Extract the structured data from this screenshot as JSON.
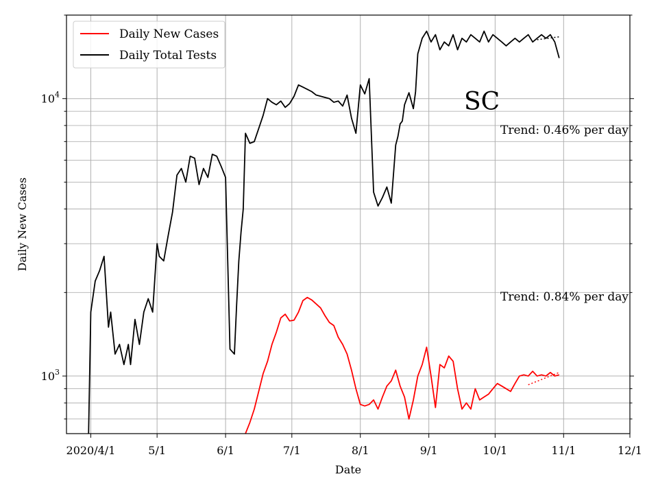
{
  "chart_data": {
    "type": "line",
    "state_label": "SC",
    "xlabel": "Date",
    "ylabel": "Daily New Cases",
    "y_scale": "log",
    "ylim": [
      620,
      20000
    ],
    "xlim": [
      "2020-03-21",
      "2020-12-01"
    ],
    "grid": true,
    "legend_position": "top-left",
    "x_ticks": [
      {
        "date": "2020-04-01",
        "label": "2020/4/1"
      },
      {
        "date": "2020-05-01",
        "label": "5/1"
      },
      {
        "date": "2020-06-01",
        "label": "6/1"
      },
      {
        "date": "2020-07-01",
        "label": "7/1"
      },
      {
        "date": "2020-08-01",
        "label": "8/1"
      },
      {
        "date": "2020-09-01",
        "label": "9/1"
      },
      {
        "date": "2020-10-01",
        "label": "10/1"
      },
      {
        "date": "2020-11-01",
        "label": "11/1"
      },
      {
        "date": "2020-12-01",
        "label": "12/1"
      }
    ],
    "y_major_ticks": [
      {
        "value": 1000,
        "base": "10",
        "exp": "3"
      },
      {
        "value": 10000,
        "base": "10",
        "exp": "4"
      }
    ],
    "annotations": [
      {
        "text": "Trend: 0.46% per day",
        "anchor_value": 8000
      },
      {
        "text": "Trend: 0.84% per day",
        "anchor_value": 2000
      }
    ],
    "series": [
      {
        "name": "Daily New Cases",
        "color": "#ff0000",
        "x": [
          "2020-06-10",
          "2020-06-12",
          "2020-06-14",
          "2020-06-16",
          "2020-06-18",
          "2020-06-20",
          "2020-06-22",
          "2020-06-24",
          "2020-06-26",
          "2020-06-28",
          "2020-06-30",
          "2020-07-02",
          "2020-07-04",
          "2020-07-06",
          "2020-07-08",
          "2020-07-10",
          "2020-07-12",
          "2020-07-14",
          "2020-07-16",
          "2020-07-18",
          "2020-07-20",
          "2020-07-22",
          "2020-07-24",
          "2020-07-26",
          "2020-07-28",
          "2020-07-30",
          "2020-08-01",
          "2020-08-03",
          "2020-08-05",
          "2020-08-07",
          "2020-08-09",
          "2020-08-11",
          "2020-08-13",
          "2020-08-15",
          "2020-08-17",
          "2020-08-19",
          "2020-08-21",
          "2020-08-23",
          "2020-08-25",
          "2020-08-27",
          "2020-08-29",
          "2020-08-31",
          "2020-09-02",
          "2020-09-04",
          "2020-09-06",
          "2020-09-08",
          "2020-09-10",
          "2020-09-12",
          "2020-09-14",
          "2020-09-16",
          "2020-09-18",
          "2020-09-20",
          "2020-09-22",
          "2020-09-24",
          "2020-09-26",
          "2020-09-28",
          "2020-09-30",
          "2020-10-02",
          "2020-10-04",
          "2020-10-06",
          "2020-10-08",
          "2020-10-10",
          "2020-10-12",
          "2020-10-14",
          "2020-10-16",
          "2020-10-18",
          "2020-10-20",
          "2020-10-22",
          "2020-10-24",
          "2020-10-26",
          "2020-10-28",
          "2020-10-30"
        ],
        "values": [
          620,
          680,
          760,
          880,
          1020,
          1130,
          1300,
          1440,
          1620,
          1670,
          1580,
          1590,
          1700,
          1870,
          1920,
          1880,
          1820,
          1760,
          1650,
          1560,
          1520,
          1380,
          1300,
          1200,
          1050,
          900,
          790,
          780,
          790,
          820,
          760,
          840,
          920,
          960,
          1050,
          920,
          840,
          700,
          820,
          1000,
          1100,
          1270,
          1000,
          770,
          1100,
          1070,
          1180,
          1130,
          900,
          760,
          800,
          760,
          900,
          820,
          840,
          860,
          900,
          940,
          920,
          900,
          880,
          940,
          1000,
          1010,
          1000,
          1040,
          1000,
          1010,
          1000,
          1030,
          1000,
          1010
        ],
        "trend": {
          "x": [
            "2020-10-16",
            "2020-10-30"
          ],
          "values": [
            930,
            1030
          ]
        }
      },
      {
        "name": "Daily Total Tests",
        "color": "#000000",
        "x": [
          "2020-03-31",
          "2020-04-01",
          "2020-04-03",
          "2020-04-05",
          "2020-04-07",
          "2020-04-09",
          "2020-04-10",
          "2020-04-12",
          "2020-04-14",
          "2020-04-16",
          "2020-04-18",
          "2020-04-19",
          "2020-04-21",
          "2020-04-23",
          "2020-04-25",
          "2020-04-27",
          "2020-04-29",
          "2020-05-01",
          "2020-05-02",
          "2020-05-04",
          "2020-05-06",
          "2020-05-08",
          "2020-05-10",
          "2020-05-12",
          "2020-05-14",
          "2020-05-16",
          "2020-05-18",
          "2020-05-20",
          "2020-05-22",
          "2020-05-24",
          "2020-05-26",
          "2020-05-28",
          "2020-05-30",
          "2020-06-01",
          "2020-06-03",
          "2020-06-05",
          "2020-06-06",
          "2020-06-07",
          "2020-06-08",
          "2020-06-09",
          "2020-06-10",
          "2020-06-12",
          "2020-06-14",
          "2020-06-16",
          "2020-06-18",
          "2020-06-20",
          "2020-06-22",
          "2020-06-24",
          "2020-06-26",
          "2020-06-28",
          "2020-06-30",
          "2020-07-02",
          "2020-07-04",
          "2020-07-06",
          "2020-07-08",
          "2020-07-10",
          "2020-07-12",
          "2020-07-14",
          "2020-07-16",
          "2020-07-18",
          "2020-07-20",
          "2020-07-22",
          "2020-07-24",
          "2020-07-26",
          "2020-07-28",
          "2020-07-30",
          "2020-08-01",
          "2020-08-03",
          "2020-08-05",
          "2020-08-07",
          "2020-08-09",
          "2020-08-11",
          "2020-08-13",
          "2020-08-15",
          "2020-08-17",
          "2020-08-18",
          "2020-08-19",
          "2020-08-20",
          "2020-08-21",
          "2020-08-23",
          "2020-08-25",
          "2020-08-26",
          "2020-08-27",
          "2020-08-29",
          "2020-08-31",
          "2020-09-02",
          "2020-09-04",
          "2020-09-06",
          "2020-09-08",
          "2020-09-10",
          "2020-09-12",
          "2020-09-14",
          "2020-09-16",
          "2020-09-18",
          "2020-09-20",
          "2020-09-22",
          "2020-09-24",
          "2020-09-26",
          "2020-09-28",
          "2020-09-30",
          "2020-10-02",
          "2020-10-04",
          "2020-10-06",
          "2020-10-08",
          "2020-10-10",
          "2020-10-12",
          "2020-10-14",
          "2020-10-16",
          "2020-10-18",
          "2020-10-20",
          "2020-10-22",
          "2020-10-24",
          "2020-10-26",
          "2020-10-28",
          "2020-10-30"
        ],
        "values": [
          620,
          1700,
          2200,
          2400,
          2700,
          1500,
          1700,
          1200,
          1300,
          1100,
          1300,
          1100,
          1600,
          1300,
          1700,
          1900,
          1700,
          3000,
          2700,
          2600,
          3200,
          3900,
          5300,
          5600,
          5000,
          6200,
          6100,
          4900,
          5600,
          5200,
          6300,
          6200,
          5700,
          5200,
          1250,
          1200,
          1800,
          2600,
          3300,
          4000,
          7500,
          6900,
          7000,
          7800,
          8700,
          10000,
          9700,
          9500,
          9800,
          9300,
          9600,
          10200,
          11200,
          11000,
          10800,
          10600,
          10300,
          10200,
          10100,
          10000,
          9700,
          9800,
          9400,
          10300,
          8500,
          7500,
          11200,
          10400,
          11800,
          4600,
          4100,
          4400,
          4800,
          4200,
          6800,
          7300,
          8100,
          8300,
          9500,
          10500,
          9200,
          10600,
          14500,
          16500,
          17500,
          16000,
          17000,
          15000,
          16000,
          15500,
          17000,
          15000,
          16500,
          16000,
          17000,
          16500,
          16000,
          17500,
          16000,
          17000,
          16500,
          16000,
          15500,
          16000,
          16500,
          16000,
          16500,
          17000,
          16000,
          16500,
          17000,
          16500,
          17000,
          16000,
          14000
        ],
        "trend": {
          "x": [
            "2020-10-20",
            "2020-10-30"
          ],
          "values": [
            16300,
            16700
          ]
        }
      }
    ]
  }
}
